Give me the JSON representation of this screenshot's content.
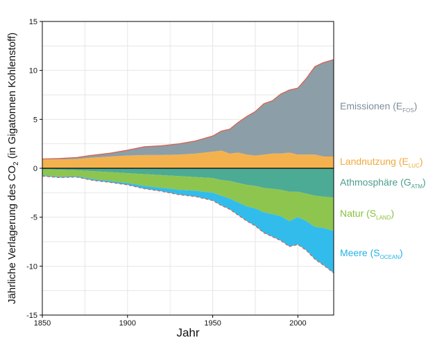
{
  "chart_data": {
    "type": "area",
    "xlabel": "Jahr",
    "ylabel": "Jährliche Verlagerung des CO",
    "ylabel_sub": "2",
    "ylabel_tail": " (in Gigatonnen Kohlenstoff)",
    "xlim": [
      1850,
      2021
    ],
    "ylim": [
      -15,
      15
    ],
    "x_ticks": [
      1850,
      1900,
      1950,
      2000
    ],
    "y_ticks": [
      15,
      10,
      5,
      0,
      -5,
      -10,
      -15
    ],
    "grid": true,
    "legend_placement": "right",
    "x": [
      1850,
      1860,
      1870,
      1880,
      1890,
      1900,
      1910,
      1920,
      1930,
      1940,
      1950,
      1955,
      1960,
      1965,
      1970,
      1975,
      1980,
      1985,
      1990,
      1995,
      2000,
      2005,
      2010,
      2015,
      2021
    ],
    "series": [
      {
        "name": "Emissionen (E",
        "sub": "FOS",
        "close": ")",
        "color": "#8c9ea8",
        "label_color": "#7e8e98",
        "side": "positive",
        "values": [
          0.05,
          0.1,
          0.15,
          0.25,
          0.35,
          0.55,
          0.85,
          0.95,
          1.1,
          1.3,
          1.6,
          2.0,
          2.5,
          3.1,
          3.9,
          4.5,
          5.2,
          5.4,
          6.1,
          6.4,
          6.8,
          7.8,
          9.0,
          9.6,
          9.9
        ]
      },
      {
        "name": "Landnutzung (E",
        "sub": "LUC",
        "close": ")",
        "color": "#f4b24e",
        "label_color": "#f0a93c",
        "side": "positive",
        "values": [
          0.9,
          0.9,
          0.95,
          1.1,
          1.2,
          1.3,
          1.35,
          1.35,
          1.4,
          1.5,
          1.7,
          1.8,
          1.5,
          1.6,
          1.4,
          1.3,
          1.4,
          1.5,
          1.5,
          1.6,
          1.4,
          1.4,
          1.4,
          1.2,
          1.2
        ]
      },
      {
        "name": "Athmosphäre (G",
        "sub": "ATM",
        "close": ")",
        "color": "#4cab94",
        "label_color": "#4a9e8e",
        "side": "negative",
        "values": [
          0.1,
          0.15,
          0.2,
          0.3,
          0.4,
          0.5,
          0.6,
          0.7,
          0.8,
          0.9,
          1.0,
          1.2,
          1.3,
          1.5,
          1.7,
          1.8,
          2.0,
          2.1,
          2.2,
          2.4,
          2.4,
          2.6,
          2.8,
          2.9,
          3.0
        ]
      },
      {
        "name": "Natur (S",
        "sub": "LAND",
        "close": ")",
        "color": "#8ec54f",
        "label_color": "#88c03c",
        "side": "negative",
        "values": [
          0.6,
          0.7,
          0.6,
          0.8,
          0.9,
          1.0,
          1.2,
          1.3,
          1.4,
          1.4,
          1.5,
          1.6,
          1.8,
          2.0,
          2.2,
          2.3,
          2.5,
          2.6,
          2.7,
          3.0,
          2.6,
          2.8,
          3.2,
          3.2,
          3.4
        ]
      },
      {
        "name": "Meere (S",
        "sub": "OCEAN",
        "close": ")",
        "color": "#32bcec",
        "label_color": "#22b3e6",
        "side": "negative",
        "values": [
          0.1,
          0.1,
          0.1,
          0.15,
          0.15,
          0.2,
          0.3,
          0.35,
          0.5,
          0.6,
          0.8,
          1.0,
          1.1,
          1.3,
          1.5,
          1.8,
          2.1,
          2.3,
          2.5,
          2.6,
          2.8,
          3.0,
          3.3,
          3.8,
          4.3
        ]
      }
    ],
    "colors": {
      "emission_outline": "#e05b43",
      "dashed_outline": "#e05b43",
      "zero_line": "#000000",
      "grid": "#e6e6e6",
      "axis": "#000000"
    }
  }
}
